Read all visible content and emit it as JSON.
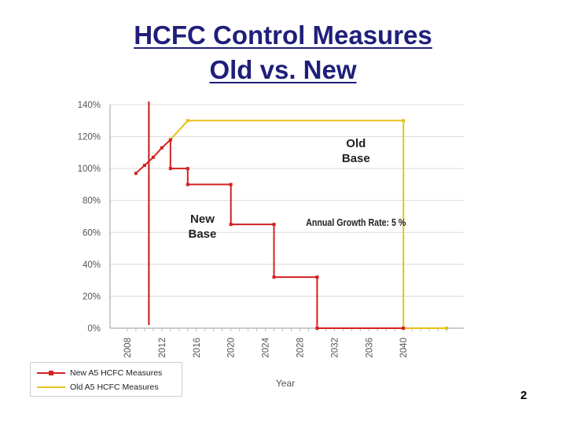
{
  "slide": {
    "title_line1": "HCFC Control Measures",
    "title_line2": "Old vs. New",
    "page_number": "2"
  },
  "chart_data": {
    "type": "line",
    "xlabel": "Year",
    "ylabel": "",
    "xlim": [
      2006,
      2047
    ],
    "ylim": [
      0,
      140
    ],
    "x_ticks": [
      2008,
      2012,
      2016,
      2020,
      2024,
      2028,
      2032,
      2036,
      2040
    ],
    "y_ticks": [
      0,
      20,
      40,
      60,
      80,
      100,
      120,
      140
    ],
    "y_tick_labels": [
      "0%",
      "20%",
      "40%",
      "60%",
      "80%",
      "100%",
      "120%",
      "140%"
    ],
    "grid": "horizontal",
    "legend_position": "bottom-left",
    "colors": {
      "new": "#d42020",
      "old": "#e8c21a",
      "marker_line": "#c41a1a",
      "title": "#1f1f7a"
    },
    "series": [
      {
        "name": "New A5 HCFC Measures",
        "color": "#d42020",
        "points": [
          [
            2009,
            97
          ],
          [
            2010,
            102
          ],
          [
            2011,
            107
          ],
          [
            2012,
            113
          ],
          [
            2013,
            118
          ],
          [
            2013,
            100
          ],
          [
            2015,
            100
          ],
          [
            2015,
            90
          ],
          [
            2020,
            90
          ],
          [
            2020,
            65
          ],
          [
            2025,
            65
          ],
          [
            2025,
            32
          ],
          [
            2030,
            32
          ],
          [
            2030,
            0
          ],
          [
            2040,
            0
          ]
        ]
      },
      {
        "name": "Old A5 HCFC Measures",
        "color": "#e8c21a",
        "points": [
          [
            2013,
            118
          ],
          [
            2015,
            130
          ],
          [
            2040,
            130
          ],
          [
            2040,
            0
          ],
          [
            2045,
            0
          ]
        ]
      }
    ],
    "vertical_marker_year": 2010.5,
    "annotations": [
      {
        "id": "old",
        "lines": [
          "Old",
          "Base"
        ],
        "x": 2034.5,
        "y": 113.5
      },
      {
        "id": "new",
        "lines": [
          "New",
          "Base"
        ],
        "x": 2016.7,
        "y": 66
      },
      {
        "id": "rate",
        "lines": [
          "Annual Growth Rate: 5 %"
        ],
        "x": 2034.5,
        "y": 64
      }
    ]
  }
}
